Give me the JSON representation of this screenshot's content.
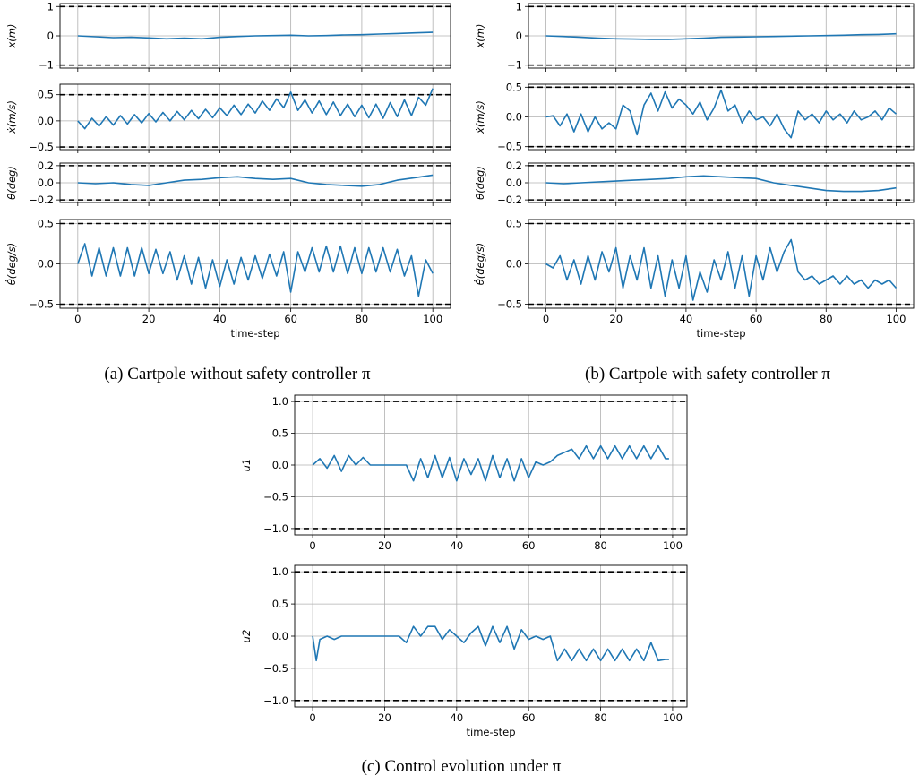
{
  "captions": {
    "a": "(a) Cartpole without safety controller π",
    "b": "(b) Cartpole with safety controller π",
    "c": "(c) Control evolution under π"
  },
  "colors": {
    "series": "#1f77b4",
    "bound": "#000000",
    "grid": "#b0b0b0"
  },
  "chart_data": [
    {
      "type": "line",
      "group": "a",
      "xlabel": "",
      "ylabel": "x(m)",
      "xlim": [
        -5,
        105
      ],
      "ylim": [
        -1.1,
        1.1
      ],
      "yticks": [
        "1",
        "0",
        "−1"
      ],
      "ytick_values": [
        1,
        0,
        -1
      ],
      "xticks": [
        "0",
        "20",
        "40",
        "60",
        "80",
        "100"
      ],
      "show_xticklabels": false,
      "bounds": [
        1,
        -1
      ],
      "x": [
        0,
        5,
        10,
        15,
        20,
        25,
        30,
        35,
        40,
        45,
        50,
        55,
        60,
        65,
        70,
        75,
        80,
        85,
        90,
        95,
        100
      ],
      "values": [
        0.0,
        -0.03,
        -0.06,
        -0.05,
        -0.07,
        -0.1,
        -0.08,
        -0.1,
        -0.05,
        -0.02,
        0.0,
        0.01,
        0.02,
        0.0,
        0.01,
        0.03,
        0.04,
        0.06,
        0.08,
        0.1,
        0.12
      ]
    },
    {
      "type": "line",
      "group": "a",
      "xlabel": "",
      "ylabel": "ẋ(m/s)",
      "xlim": [
        -5,
        105
      ],
      "ylim": [
        -0.55,
        0.7
      ],
      "yticks": [
        "0.5",
        "0.0",
        "−0.5"
      ],
      "ytick_values": [
        0.5,
        0,
        -0.5
      ],
      "xticks": [
        "0",
        "20",
        "40",
        "60",
        "80",
        "100"
      ],
      "show_xticklabels": false,
      "bounds": [
        0.5,
        -0.5
      ],
      "x": [
        0,
        2,
        4,
        6,
        8,
        10,
        12,
        14,
        16,
        18,
        20,
        22,
        24,
        26,
        28,
        30,
        32,
        34,
        36,
        38,
        40,
        42,
        44,
        46,
        48,
        50,
        52,
        54,
        56,
        58,
        60,
        62,
        64,
        66,
        68,
        70,
        72,
        74,
        76,
        78,
        80,
        82,
        84,
        86,
        88,
        90,
        92,
        94,
        96,
        98,
        100
      ],
      "values": [
        0.0,
        -0.15,
        0.05,
        -0.1,
        0.08,
        -0.08,
        0.1,
        -0.06,
        0.12,
        -0.04,
        0.14,
        -0.02,
        0.16,
        0.0,
        0.18,
        0.02,
        0.2,
        0.04,
        0.22,
        0.06,
        0.25,
        0.1,
        0.3,
        0.12,
        0.32,
        0.15,
        0.38,
        0.2,
        0.42,
        0.25,
        0.55,
        0.2,
        0.4,
        0.15,
        0.38,
        0.12,
        0.36,
        0.1,
        0.32,
        0.08,
        0.3,
        0.06,
        0.32,
        0.05,
        0.35,
        0.08,
        0.4,
        0.1,
        0.45,
        0.3,
        0.62
      ]
    },
    {
      "type": "line",
      "group": "a",
      "xlabel": "",
      "ylabel": "θ(deg)",
      "xlim": [
        -5,
        105
      ],
      "ylim": [
        -0.23,
        0.23
      ],
      "yticks": [
        "0.2",
        "0.0",
        "−0.2"
      ],
      "ytick_values": [
        0.2,
        0,
        -0.2
      ],
      "xticks": [
        "0",
        "20",
        "40",
        "60",
        "80",
        "100"
      ],
      "show_xticklabels": false,
      "bounds": [
        0.2,
        -0.2
      ],
      "x": [
        0,
        5,
        10,
        15,
        20,
        25,
        30,
        35,
        40,
        45,
        50,
        55,
        60,
        65,
        70,
        75,
        80,
        85,
        90,
        95,
        100
      ],
      "values": [
        0.0,
        -0.01,
        0.0,
        -0.02,
        -0.03,
        0.0,
        0.03,
        0.04,
        0.06,
        0.07,
        0.05,
        0.04,
        0.05,
        0.0,
        -0.02,
        -0.03,
        -0.04,
        -0.02,
        0.03,
        0.06,
        0.09
      ]
    },
    {
      "type": "line",
      "group": "a",
      "xlabel": "time-step",
      "ylabel": "θ̇(deg/s)",
      "xlim": [
        -5,
        105
      ],
      "ylim": [
        -0.55,
        0.55
      ],
      "yticks": [
        "0.5",
        "0.0",
        "−0.5"
      ],
      "ytick_values": [
        0.5,
        0,
        -0.5
      ],
      "xticks": [
        "0",
        "20",
        "40",
        "60",
        "80",
        "100"
      ],
      "show_xticklabels": true,
      "bounds": [
        0.5,
        -0.5
      ],
      "x": [
        0,
        2,
        4,
        6,
        8,
        10,
        12,
        14,
        16,
        18,
        20,
        22,
        24,
        26,
        28,
        30,
        32,
        34,
        36,
        38,
        40,
        42,
        44,
        46,
        48,
        50,
        52,
        54,
        56,
        58,
        60,
        62,
        64,
        66,
        68,
        70,
        72,
        74,
        76,
        78,
        80,
        82,
        84,
        86,
        88,
        90,
        92,
        94,
        96,
        98,
        100
      ],
      "values": [
        0.0,
        0.25,
        -0.15,
        0.2,
        -0.15,
        0.2,
        -0.15,
        0.2,
        -0.15,
        0.2,
        -0.12,
        0.18,
        -0.12,
        0.15,
        -0.2,
        0.1,
        -0.25,
        0.08,
        -0.3,
        0.05,
        -0.28,
        0.05,
        -0.25,
        0.08,
        -0.2,
        0.1,
        -0.18,
        0.12,
        -0.15,
        0.15,
        -0.35,
        0.15,
        -0.1,
        0.2,
        -0.1,
        0.22,
        -0.1,
        0.22,
        -0.12,
        0.2,
        -0.12,
        0.2,
        -0.1,
        0.2,
        -0.1,
        0.18,
        -0.15,
        0.1,
        -0.4,
        0.05,
        -0.12
      ]
    },
    {
      "type": "line",
      "group": "b",
      "xlabel": "",
      "ylabel": "x(m)",
      "xlim": [
        -5,
        105
      ],
      "ylim": [
        -1.1,
        1.1
      ],
      "yticks": [
        "1",
        "0",
        "−1"
      ],
      "ytick_values": [
        1,
        0,
        -1
      ],
      "xticks": [
        "0",
        "20",
        "40",
        "60",
        "80",
        "100"
      ],
      "show_xticklabels": false,
      "bounds": [
        1,
        -1
      ],
      "x": [
        0,
        5,
        10,
        15,
        20,
        25,
        30,
        35,
        40,
        45,
        50,
        55,
        60,
        65,
        70,
        75,
        80,
        85,
        90,
        95,
        100
      ],
      "values": [
        0.0,
        -0.02,
        -0.05,
        -0.08,
        -0.1,
        -0.11,
        -0.12,
        -0.12,
        -0.1,
        -0.08,
        -0.05,
        -0.04,
        -0.03,
        -0.02,
        -0.01,
        0.0,
        0.01,
        0.02,
        0.04,
        0.05,
        0.07
      ]
    },
    {
      "type": "line",
      "group": "b",
      "xlabel": "",
      "ylabel": "ẋ(m/s)",
      "xlim": [
        -5,
        105
      ],
      "ylim": [
        -0.55,
        0.55
      ],
      "yticks": [
        "0.5",
        "0.0",
        "−0.5"
      ],
      "ytick_values": [
        0.5,
        0,
        -0.5
      ],
      "xticks": [
        "0",
        "20",
        "40",
        "60",
        "80",
        "100"
      ],
      "show_xticklabels": false,
      "bounds": [
        0.5,
        -0.5
      ],
      "x": [
        0,
        2,
        4,
        6,
        8,
        10,
        12,
        14,
        16,
        18,
        20,
        22,
        24,
        26,
        28,
        30,
        32,
        34,
        36,
        38,
        40,
        42,
        44,
        46,
        48,
        50,
        52,
        54,
        56,
        58,
        60,
        62,
        64,
        66,
        68,
        70,
        72,
        74,
        76,
        78,
        80,
        82,
        84,
        86,
        88,
        90,
        92,
        94,
        96,
        98,
        100
      ],
      "values": [
        0.0,
        0.02,
        -0.15,
        0.05,
        -0.25,
        0.05,
        -0.25,
        0.0,
        -0.2,
        -0.1,
        -0.2,
        0.2,
        0.1,
        -0.3,
        0.2,
        0.4,
        0.1,
        0.42,
        0.15,
        0.3,
        0.2,
        0.05,
        0.25,
        -0.05,
        0.15,
        0.45,
        0.1,
        0.2,
        -0.1,
        0.1,
        -0.05,
        0.0,
        -0.15,
        0.05,
        -0.2,
        -0.35,
        0.1,
        -0.05,
        0.05,
        -0.1,
        0.1,
        -0.05,
        0.05,
        -0.1,
        0.1,
        -0.05,
        0.0,
        0.1,
        -0.05,
        0.15,
        0.05
      ]
    },
    {
      "type": "line",
      "group": "b",
      "xlabel": "",
      "ylabel": "θ(deg)",
      "xlim": [
        -5,
        105
      ],
      "ylim": [
        -0.23,
        0.23
      ],
      "yticks": [
        "0.2",
        "0.0",
        "−0.2"
      ],
      "ytick_values": [
        0.2,
        0,
        -0.2
      ],
      "xticks": [
        "0",
        "20",
        "40",
        "60",
        "80",
        "100"
      ],
      "show_xticklabels": false,
      "bounds": [
        0.2,
        -0.2
      ],
      "x": [
        0,
        5,
        10,
        15,
        20,
        25,
        30,
        35,
        40,
        45,
        50,
        55,
        60,
        65,
        70,
        75,
        80,
        85,
        90,
        95,
        100
      ],
      "values": [
        0.0,
        -0.01,
        0.0,
        0.01,
        0.02,
        0.03,
        0.04,
        0.05,
        0.07,
        0.08,
        0.07,
        0.06,
        0.05,
        0.0,
        -0.03,
        -0.06,
        -0.09,
        -0.1,
        -0.1,
        -0.09,
        -0.06
      ]
    },
    {
      "type": "line",
      "group": "b",
      "xlabel": "time-step",
      "ylabel": "θ̇(deg/s)",
      "xlim": [
        -5,
        105
      ],
      "ylim": [
        -0.55,
        0.55
      ],
      "yticks": [
        "0.5",
        "0.0",
        "−0.5"
      ],
      "ytick_values": [
        0.5,
        0,
        -0.5
      ],
      "xticks": [
        "0",
        "20",
        "40",
        "60",
        "80",
        "100"
      ],
      "show_xticklabels": true,
      "bounds": [
        0.5,
        -0.5
      ],
      "x": [
        0,
        2,
        4,
        6,
        8,
        10,
        12,
        14,
        16,
        18,
        20,
        22,
        24,
        26,
        28,
        30,
        32,
        34,
        36,
        38,
        40,
        42,
        44,
        46,
        48,
        50,
        52,
        54,
        56,
        58,
        60,
        62,
        64,
        66,
        68,
        70,
        72,
        74,
        76,
        78,
        80,
        82,
        84,
        86,
        88,
        90,
        92,
        94,
        96,
        98,
        100
      ],
      "values": [
        0.0,
        -0.05,
        0.1,
        -0.2,
        0.05,
        -0.25,
        0.1,
        -0.2,
        0.15,
        -0.1,
        0.2,
        -0.3,
        0.1,
        -0.2,
        0.2,
        -0.3,
        0.1,
        -0.4,
        0.05,
        -0.3,
        0.1,
        -0.45,
        -0.1,
        -0.35,
        0.05,
        -0.2,
        0.15,
        -0.3,
        0.1,
        -0.4,
        0.1,
        -0.2,
        0.2,
        -0.1,
        0.15,
        0.3,
        -0.1,
        -0.2,
        -0.15,
        -0.25,
        -0.2,
        -0.15,
        -0.25,
        -0.15,
        -0.25,
        -0.2,
        -0.3,
        -0.2,
        -0.25,
        -0.2,
        -0.3
      ]
    },
    {
      "type": "line",
      "group": "c",
      "xlabel": "",
      "ylabel": "u1",
      "xlim": [
        -5,
        104
      ],
      "ylim": [
        -1.1,
        1.1
      ],
      "yticks": [
        "1.0",
        "0.5",
        "0.0",
        "−0.5",
        "−1.0"
      ],
      "ytick_values": [
        1,
        0.5,
        0,
        -0.5,
        -1
      ],
      "xticks": [
        "0",
        "20",
        "40",
        "60",
        "80",
        "100"
      ],
      "show_xticklabels": true,
      "bounds": [
        1,
        -1
      ],
      "x": [
        0,
        2,
        4,
        6,
        8,
        10,
        12,
        14,
        16,
        18,
        20,
        22,
        24,
        26,
        28,
        30,
        32,
        34,
        36,
        38,
        40,
        42,
        44,
        46,
        48,
        50,
        52,
        54,
        56,
        58,
        60,
        62,
        64,
        66,
        68,
        70,
        72,
        74,
        76,
        78,
        80,
        82,
        84,
        86,
        88,
        90,
        92,
        94,
        96,
        98,
        99
      ],
      "values": [
        0.0,
        0.1,
        -0.05,
        0.15,
        -0.1,
        0.15,
        0.0,
        0.12,
        0.0,
        0.0,
        0.0,
        0.0,
        0.0,
        0.0,
        -0.25,
        0.1,
        -0.2,
        0.15,
        -0.2,
        0.12,
        -0.25,
        0.1,
        -0.15,
        0.1,
        -0.25,
        0.15,
        -0.2,
        0.1,
        -0.25,
        0.1,
        -0.2,
        0.05,
        0.0,
        0.05,
        0.15,
        0.2,
        0.25,
        0.1,
        0.3,
        0.1,
        0.3,
        0.1,
        0.3,
        0.1,
        0.3,
        0.1,
        0.3,
        0.1,
        0.3,
        0.1,
        0.1
      ]
    },
    {
      "type": "line",
      "group": "c",
      "xlabel": "time-step",
      "ylabel": "u2",
      "xlim": [
        -5,
        104
      ],
      "ylim": [
        -1.1,
        1.1
      ],
      "yticks": [
        "1.0",
        "0.5",
        "0.0",
        "−0.5",
        "−1.0"
      ],
      "ytick_values": [
        1,
        0.5,
        0,
        -0.5,
        -1
      ],
      "xticks": [
        "0",
        "20",
        "40",
        "60",
        "80",
        "100"
      ],
      "show_xticklabels": true,
      "bounds": [
        1,
        -1
      ],
      "x": [
        0,
        1,
        2,
        4,
        6,
        8,
        10,
        12,
        14,
        16,
        18,
        20,
        22,
        24,
        26,
        28,
        30,
        32,
        34,
        36,
        38,
        40,
        42,
        44,
        46,
        48,
        50,
        52,
        54,
        56,
        58,
        60,
        62,
        64,
        66,
        68,
        70,
        72,
        74,
        76,
        78,
        80,
        82,
        84,
        86,
        88,
        90,
        92,
        94,
        96,
        98,
        99
      ],
      "values": [
        0.0,
        -0.38,
        -0.05,
        0.0,
        -0.05,
        0.0,
        0.0,
        0.0,
        0.0,
        0.0,
        0.0,
        0.0,
        0.0,
        0.0,
        -0.1,
        0.15,
        0.0,
        0.15,
        0.15,
        -0.05,
        0.1,
        0.0,
        -0.1,
        0.05,
        0.15,
        -0.15,
        0.15,
        -0.1,
        0.15,
        -0.2,
        0.1,
        -0.05,
        0.0,
        -0.05,
        0.0,
        -0.38,
        -0.2,
        -0.38,
        -0.2,
        -0.38,
        -0.2,
        -0.38,
        -0.2,
        -0.38,
        -0.2,
        -0.38,
        -0.2,
        -0.38,
        -0.1,
        -0.38,
        -0.36,
        -0.36
      ]
    }
  ]
}
